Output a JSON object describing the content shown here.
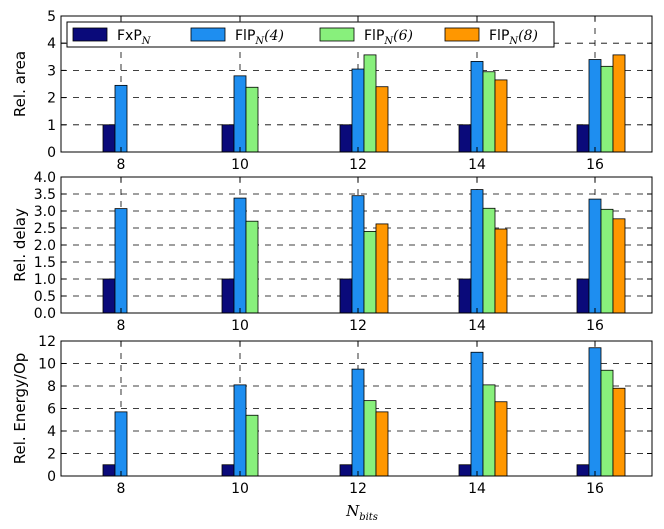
{
  "colors": {
    "FxP_N": "#0a0a7a",
    "FlP_N(4)": "#1e8ef0",
    "FlP_N(6)": "#88f07c",
    "FlP_N(8)": "#ff9700"
  },
  "legend": [
    {
      "name": "FxP_N",
      "prefix": "FxP",
      "sub": "N",
      "arg": ""
    },
    {
      "name": "FlP_N(4)",
      "prefix": "FlP",
      "sub": "N",
      "arg": "(4)"
    },
    {
      "name": "FlP_N(6)",
      "prefix": "FlP",
      "sub": "N",
      "arg": "(6)"
    },
    {
      "name": "FlP_N(8)",
      "prefix": "FlP",
      "sub": "N",
      "arg": "(8)"
    }
  ],
  "xlabel": {
    "main": "N",
    "sub": "bits"
  },
  "chart_data": [
    {
      "type": "bar",
      "ylabel": "Rel. area",
      "ylim": [
        0,
        5
      ],
      "yticks": [
        "0",
        "1",
        "2",
        "3",
        "4",
        "5"
      ],
      "categories": [
        "8",
        "10",
        "12",
        "14",
        "16"
      ],
      "series": [
        {
          "name": "FxP_N",
          "values": [
            1,
            1,
            1,
            1,
            1
          ]
        },
        {
          "name": "FlP_N(4)",
          "values": [
            2.45,
            2.8,
            3.05,
            3.33,
            3.4
          ]
        },
        {
          "name": "FlP_N(6)",
          "values": [
            null,
            2.38,
            3.57,
            2.95,
            3.15
          ]
        },
        {
          "name": "FlP_N(8)",
          "values": [
            null,
            null,
            2.4,
            2.65,
            3.57
          ]
        }
      ]
    },
    {
      "type": "bar",
      "ylabel": "Rel. delay",
      "ylim": [
        0,
        4
      ],
      "yticks": [
        "0.0",
        "0.5",
        "1.0",
        "1.5",
        "2.0",
        "2.5",
        "3.0",
        "3.5",
        "4.0"
      ],
      "categories": [
        "8",
        "10",
        "12",
        "14",
        "16"
      ],
      "series": [
        {
          "name": "FxP_N",
          "values": [
            1,
            1,
            1,
            1,
            1
          ]
        },
        {
          "name": "FlP_N(4)",
          "values": [
            3.07,
            3.38,
            3.45,
            3.63,
            3.35
          ]
        },
        {
          "name": "FlP_N(6)",
          "values": [
            null,
            2.7,
            2.4,
            3.08,
            3.05
          ]
        },
        {
          "name": "FlP_N(8)",
          "values": [
            null,
            null,
            2.62,
            2.47,
            2.77
          ]
        }
      ]
    },
    {
      "type": "bar",
      "ylabel": "Rel. Energy/Op",
      "ylim": [
        0,
        12
      ],
      "yticks": [
        "0",
        "2",
        "4",
        "6",
        "8",
        "10",
        "12"
      ],
      "categories": [
        "8",
        "10",
        "12",
        "14",
        "16"
      ],
      "series": [
        {
          "name": "FxP_N",
          "values": [
            1,
            1,
            1,
            1,
            1
          ]
        },
        {
          "name": "FlP_N(4)",
          "values": [
            5.7,
            8.1,
            9.5,
            11.0,
            11.4
          ]
        },
        {
          "name": "FlP_N(6)",
          "values": [
            null,
            5.4,
            6.7,
            8.1,
            9.4
          ]
        },
        {
          "name": "FlP_N(8)",
          "values": [
            null,
            null,
            5.7,
            6.6,
            7.8
          ]
        }
      ]
    }
  ]
}
